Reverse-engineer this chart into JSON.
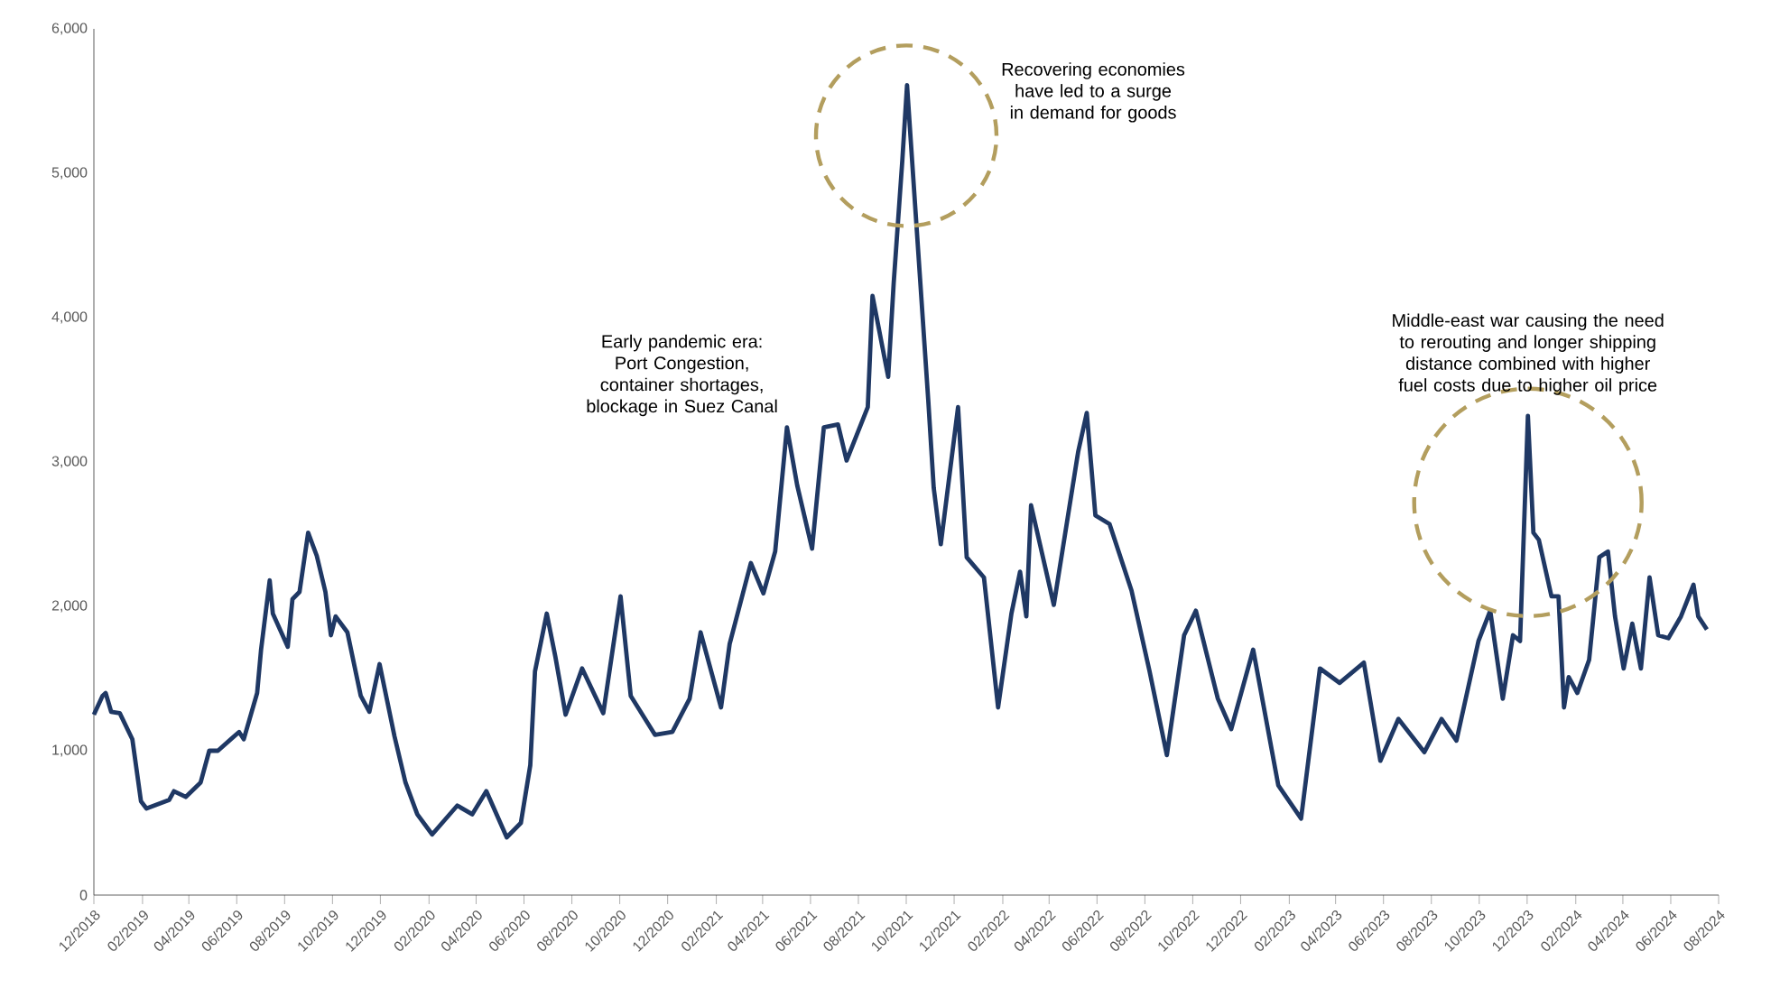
{
  "chart_data": {
    "type": "line",
    "x": [
      "2018-12-01",
      "2018-12-12",
      "2018-12-16",
      "2018-12-23",
      "2019-01-03",
      "2019-01-19",
      "2019-01-30",
      "2019-02-06",
      "2019-03-07",
      "2019-03-13",
      "2019-03-28",
      "2019-04-16",
      "2019-04-27",
      "2019-05-08",
      "2019-06-04",
      "2019-06-10",
      "2019-06-27",
      "2019-07-02",
      "2019-07-13",
      "2019-07-17",
      "2019-08-05",
      "2019-08-11",
      "2019-08-20",
      "2019-08-31",
      "2019-09-11",
      "2019-09-22",
      "2019-09-29",
      "2019-10-05",
      "2019-10-20",
      "2019-11-06",
      "2019-11-17",
      "2019-11-30",
      "2019-12-19",
      "2020-01-02",
      "2020-01-17",
      "2020-02-05",
      "2020-03-08",
      "2020-03-27",
      "2020-04-14",
      "2020-05-10",
      "2020-05-28",
      "2020-06-09",
      "2020-06-15",
      "2020-06-30",
      "2020-07-11",
      "2020-07-24",
      "2020-08-14",
      "2020-09-10",
      "2020-10-02",
      "2020-10-15",
      "2020-11-15",
      "2020-12-07",
      "2020-12-29",
      "2021-01-12",
      "2021-02-07",
      "2021-02-18",
      "2021-03-17",
      "2021-04-02",
      "2021-04-17",
      "2021-05-02",
      "2021-05-15",
      "2021-06-03",
      "2021-06-18",
      "2021-07-06",
      "2021-07-17",
      "2021-08-13",
      "2021-08-19",
      "2021-09-08",
      "2021-09-15",
      "2021-09-26",
      "2021-10-02",
      "2021-10-13",
      "2021-10-29",
      "2021-11-05",
      "2021-11-14",
      "2021-12-06",
      "2021-12-17",
      "2022-01-08",
      "2022-01-26",
      "2022-02-12",
      "2022-02-23",
      "2022-03-03",
      "2022-03-09",
      "2022-04-07",
      "2022-05-08",
      "2022-05-19",
      "2022-05-30",
      "2022-06-17",
      "2022-07-15",
      "2022-08-07",
      "2022-08-29",
      "2022-09-20",
      "2022-10-05",
      "2022-11-02",
      "2022-11-19",
      "2022-12-17",
      "2023-01-18",
      "2023-02-16",
      "2023-03-12",
      "2023-04-06",
      "2023-05-07",
      "2023-05-28",
      "2023-06-20",
      "2023-07-23",
      "2023-08-14",
      "2023-09-02",
      "2023-09-30",
      "2023-10-15",
      "2023-10-31",
      "2023-11-13",
      "2023-11-22",
      "2023-12-02",
      "2023-12-09",
      "2023-12-16",
      "2024-01-01",
      "2024-01-10",
      "2024-01-17",
      "2024-01-23",
      "2024-02-03",
      "2024-02-18",
      "2024-03-02",
      "2024-03-13",
      "2024-03-22",
      "2024-04-02",
      "2024-04-13",
      "2024-04-24",
      "2024-05-05",
      "2024-05-16",
      "2024-05-29",
      "2024-06-14",
      "2024-06-30",
      "2024-07-06",
      "2024-07-17"
    ],
    "values": [
      1250,
      1380,
      1400,
      1270,
      1260,
      1080,
      650,
      600,
      660,
      720,
      680,
      780,
      1000,
      1000,
      1130,
      1080,
      1400,
      1700,
      2180,
      1950,
      1720,
      2050,
      2100,
      2510,
      2350,
      2100,
      1800,
      1930,
      1820,
      1380,
      1270,
      1600,
      1100,
      780,
      560,
      420,
      620,
      560,
      720,
      400,
      500,
      900,
      1550,
      1950,
      1650,
      1250,
      1570,
      1260,
      2070,
      1380,
      1110,
      1130,
      1360,
      1820,
      1300,
      1740,
      2300,
      2090,
      2380,
      3240,
      2840,
      2400,
      3240,
      3260,
      3010,
      3380,
      4150,
      3590,
      4240,
      5090,
      5610,
      4720,
      3430,
      2820,
      2430,
      3380,
      2340,
      2200,
      1300,
      1950,
      2240,
      1930,
      2700,
      2010,
      3070,
      3340,
      2630,
      2570,
      2110,
      1550,
      970,
      1800,
      1970,
      1360,
      1150,
      1700,
      760,
      530,
      1570,
      1470,
      1610,
      930,
      1220,
      990,
      1220,
      1070,
      1760,
      1970,
      1360,
      1800,
      1760,
      3320,
      2510,
      2460,
      2070,
      2070,
      1300,
      1510,
      1400,
      1630,
      2340,
      2380,
      1930,
      1570,
      1880,
      1570,
      2200,
      1800,
      1780,
      1930,
      2150,
      1930,
      1840
    ],
    "color": "#1f3864",
    "xlim": [
      "2018-12-01",
      "2024-08-01"
    ],
    "ylim": [
      0,
      6000
    ],
    "yticks": [
      0,
      {
        "value": 1000,
        "label": "1,000"
      },
      {
        "value": 2000,
        "label": "2,000"
      },
      {
        "value": 3000,
        "label": "3,000"
      },
      {
        "value": 4000,
        "label": "4,000"
      },
      {
        "value": 5000,
        "label": "5,000"
      },
      {
        "value": 6000,
        "label": "6,000"
      }
    ],
    "xticks": [
      {
        "value": "2018-12-01",
        "label": "12/2018"
      },
      {
        "value": "2019-02-01",
        "label": "02/2019"
      },
      {
        "value": "2019-04-01",
        "label": "04/2019"
      },
      {
        "value": "2019-06-01",
        "label": "06/2019"
      },
      {
        "value": "2019-08-01",
        "label": "08/2019"
      },
      {
        "value": "2019-10-01",
        "label": "10/2019"
      },
      {
        "value": "2019-12-01",
        "label": "12/2019"
      },
      {
        "value": "2020-02-01",
        "label": "02/2020"
      },
      {
        "value": "2020-04-01",
        "label": "04/2020"
      },
      {
        "value": "2020-06-01",
        "label": "06/2020"
      },
      {
        "value": "2020-08-01",
        "label": "08/2020"
      },
      {
        "value": "2020-10-01",
        "label": "10/2020"
      },
      {
        "value": "2020-12-01",
        "label": "12/2020"
      },
      {
        "value": "2021-02-01",
        "label": "02/2021"
      },
      {
        "value": "2021-04-01",
        "label": "04/2021"
      },
      {
        "value": "2021-06-01",
        "label": "06/2021"
      },
      {
        "value": "2021-08-01",
        "label": "08/2021"
      },
      {
        "value": "2021-10-01",
        "label": "10/2021"
      },
      {
        "value": "2021-12-01",
        "label": "12/2021"
      },
      {
        "value": "2022-02-01",
        "label": "02/2022"
      },
      {
        "value": "2022-04-01",
        "label": "04/2022"
      },
      {
        "value": "2022-06-01",
        "label": "06/2022"
      },
      {
        "value": "2022-08-01",
        "label": "08/2022"
      },
      {
        "value": "2022-10-01",
        "label": "10/2022"
      },
      {
        "value": "2022-12-01",
        "label": "12/2022"
      },
      {
        "value": "2023-02-01",
        "label": "02/2023"
      },
      {
        "value": "2023-04-01",
        "label": "04/2023"
      },
      {
        "value": "2023-06-01",
        "label": "06/2023"
      },
      {
        "value": "2023-08-01",
        "label": "08/2023"
      },
      {
        "value": "2023-10-01",
        "label": "10/2023"
      },
      {
        "value": "2023-12-01",
        "label": "12/2023"
      },
      {
        "value": "2024-02-01",
        "label": "02/2024"
      },
      {
        "value": "2024-04-01",
        "label": "04/2024"
      },
      {
        "value": "2024-06-01",
        "label": "06/2024"
      },
      {
        "value": "2024-08-01",
        "label": "08/2024"
      }
    ],
    "annotations": [
      "Early pandemic era: Port Congestion, container shortages, blockage in Suez Canal",
      "Recovering economies have led to a surge in demand for goods",
      {
        "text": "Middle-east war causing the need to rerouting and longer shipping distance combined with higher fuel costs due to higher oil price",
        "x": "2023-12-02",
        "y": 3320
      }
    ]
  }
}
